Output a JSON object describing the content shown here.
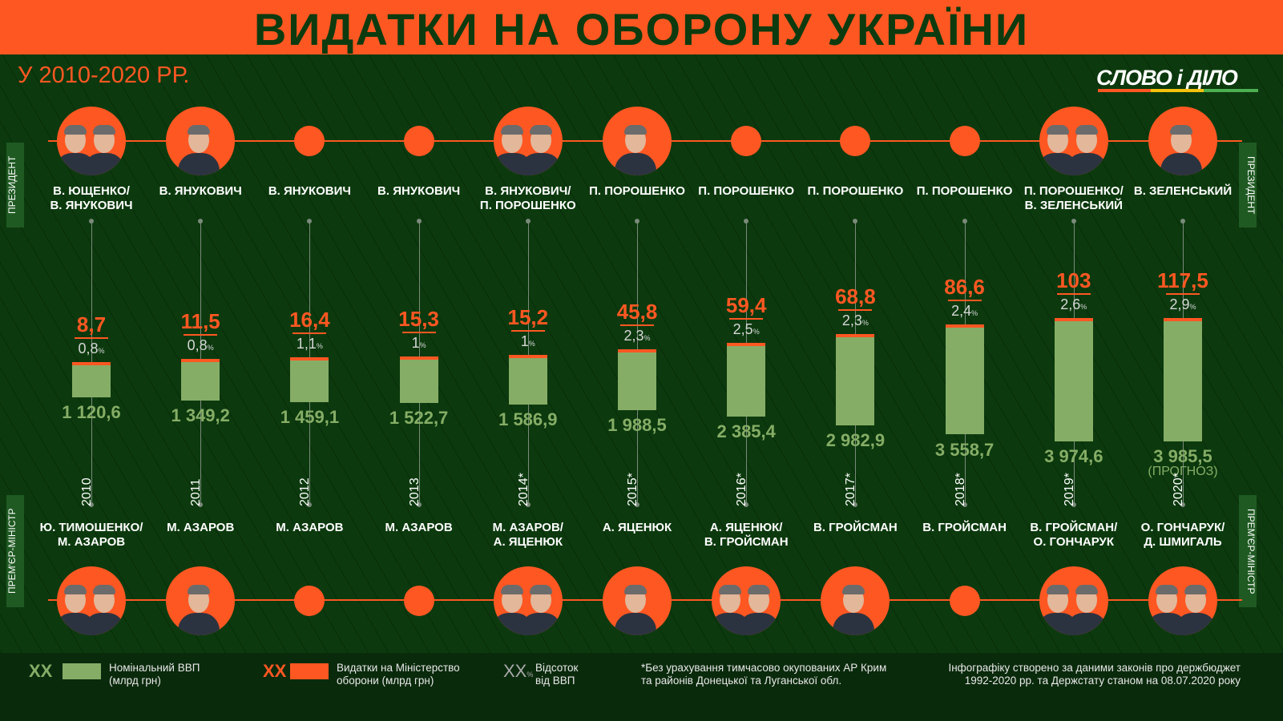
{
  "header": {
    "title": "ВИДАТКИ НА ОБОРОНУ УКРАЇНИ",
    "subtitle": "У 2010-2020 РР."
  },
  "logo": {
    "text": "СЛОВО і ДІЛО"
  },
  "side_labels": {
    "president": "ПРЕЗИДЕНТ",
    "pm": "ПРЕМ'ЄР-МІНІСТР"
  },
  "colors": {
    "accent": "#ff5722",
    "gdp": "#86ad66",
    "background": "#0c3a0e",
    "pct": "#d6d6d6"
  },
  "chart_data": {
    "type": "bar",
    "categories": [
      "2010",
      "2011",
      "2012",
      "2013",
      "2014*",
      "2015*",
      "2016*",
      "2017*",
      "2018*",
      "2019*",
      "2020*"
    ],
    "series": [
      {
        "name": "Номінальний ВВП (млрд грн)",
        "values": [
          1120.6,
          1349.2,
          1459.1,
          1522.7,
          1586.9,
          1988.5,
          2385.4,
          2982.9,
          3558.7,
          3974.6,
          3985.5
        ],
        "labels": [
          "1 120,6",
          "1 349,2",
          "1 459,1",
          "1 522,7",
          "1 586,9",
          "1 988,5",
          "2 385,4",
          "2 982,9",
          "3 558,7",
          "3 974,6",
          "3 985,5"
        ]
      },
      {
        "name": "Видатки на Міністерство оборони (млрд грн)",
        "values": [
          8.7,
          11.5,
          16.4,
          15.3,
          15.2,
          45.8,
          59.4,
          68.8,
          86.6,
          103,
          117.5
        ],
        "labels": [
          "8,7",
          "11,5",
          "16,4",
          "15,3",
          "15,2",
          "45,8",
          "59,4",
          "68,8",
          "86,6",
          "103",
          "117,5"
        ]
      },
      {
        "name": "Відсоток від ВВП",
        "values": [
          0.8,
          0.8,
          1.1,
          1,
          1,
          2.3,
          2.5,
          2.3,
          2.4,
          2.6,
          2.9
        ],
        "labels": [
          "0,8",
          "0,8",
          "1,1",
          "1",
          "1",
          "2,3",
          "2,5",
          "2,3",
          "2,4",
          "2,6",
          "2,9"
        ]
      }
    ],
    "pct_unit": "%",
    "annotations": {
      "forecast_note": "(ПРОГНОЗ)"
    }
  },
  "presidents": [
    {
      "name": "В. ЮЩЕНКО/\nВ. ЯНУКОВИЧ",
      "photo": "two"
    },
    {
      "name": "В. ЯНУКОВИЧ",
      "photo": "one"
    },
    {
      "name": "В. ЯНУКОВИЧ",
      "photo": "dot"
    },
    {
      "name": "В. ЯНУКОВИЧ",
      "photo": "dot"
    },
    {
      "name": "В. ЯНУКОВИЧ/\nП. ПОРОШЕНКО",
      "photo": "two"
    },
    {
      "name": "П. ПОРОШЕНКО",
      "photo": "one"
    },
    {
      "name": "П. ПОРОШЕНКО",
      "photo": "dot"
    },
    {
      "name": "П. ПОРОШЕНКО",
      "photo": "dot"
    },
    {
      "name": "П. ПОРОШЕНКО",
      "photo": "dot"
    },
    {
      "name": "П. ПОРОШЕНКО/\nВ. ЗЕЛЕНСЬКИЙ",
      "photo": "two"
    },
    {
      "name": "В. ЗЕЛЕНСЬКИЙ",
      "photo": "one"
    }
  ],
  "prime_ministers": [
    {
      "name": "Ю. ТИМОШЕНКО/\nМ. АЗАРОВ",
      "photo": "two"
    },
    {
      "name": "М. АЗАРОВ",
      "photo": "one"
    },
    {
      "name": "М. АЗАРОВ",
      "photo": "dot"
    },
    {
      "name": "М. АЗАРОВ",
      "photo": "dot"
    },
    {
      "name": "М. АЗАРОВ/\nА. ЯЦЕНЮК",
      "photo": "two"
    },
    {
      "name": "А. ЯЦЕНЮК",
      "photo": "one"
    },
    {
      "name": "А. ЯЦЕНЮК/\nВ. ГРОЙСМАН",
      "photo": "two"
    },
    {
      "name": "В. ГРОЙСМАН",
      "photo": "one"
    },
    {
      "name": "В. ГРОЙСМАН",
      "photo": "dot"
    },
    {
      "name": "В. ГРОЙСМАН/\nО. ГОНЧАРУК",
      "photo": "two"
    },
    {
      "name": "О. ГОНЧАРУК/\nД. ШМИГАЛЬ",
      "photo": "two"
    }
  ],
  "legend": {
    "gdp_symbol": "XX",
    "gdp_label": "Номінальний ВВП\n(млрд грн)",
    "def_symbol": "XX",
    "def_label": "Видатки на Міністерство\nоборони (млрд грн)",
    "pct_symbol": "XX",
    "pct_unit": "%",
    "pct_label": "Відсоток\nвід ВВП"
  },
  "footnote": "*Без урахування тимчасово окупованих АР Крим\nта районів Донецької та Луганської обл.",
  "source": "Інфографіку створено за даними законів про держбюджет\n1992-2020 рр. та Держстату станом на 08.07.2020 року"
}
